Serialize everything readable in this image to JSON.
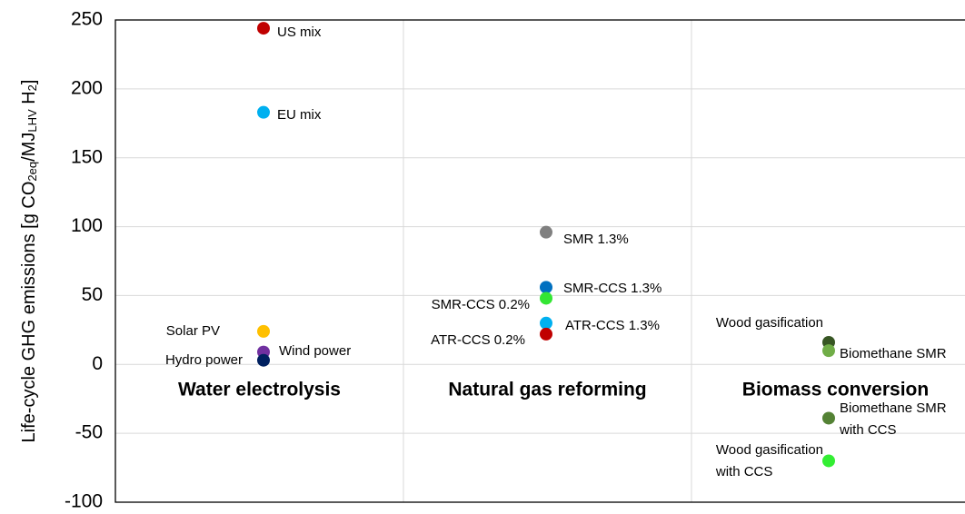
{
  "chart_data": {
    "type": "scatter",
    "ylabel": [
      {
        "text": "Life-cycle GHG emissions [g CO"
      },
      {
        "text": "2eq",
        "sub": true
      },
      {
        "text": "/MJ"
      },
      {
        "text": "LHV",
        "sub": true
      },
      {
        "text": " H"
      },
      {
        "text": "2",
        "sub": true
      },
      {
        "text": "]"
      }
    ],
    "ylim": [
      -100,
      250
    ],
    "yticks": [
      -100,
      -50,
      0,
      50,
      100,
      150,
      200,
      250
    ],
    "grid": true,
    "groups": [
      {
        "name": "Water electrolysis",
        "points": [
          {
            "label": "US mix",
            "color": "#c00000",
            "value": 244
          },
          {
            "label": "EU mix",
            "color": "#00b0f0",
            "value": 183
          },
          {
            "label": "Solar PV",
            "color": "#ffc000",
            "value": 24
          },
          {
            "label": "Wind power",
            "color": "#7030a0",
            "value": 9
          },
          {
            "label": "Hydro power",
            "color": "#002060",
            "value": 3
          }
        ]
      },
      {
        "name": "Natural gas reforming",
        "points": [
          {
            "label": "SMR 1.3%",
            "color": "#808080",
            "value": 96
          },
          {
            "label": "SMR-CCS 1.3%",
            "color": "#0070c0",
            "value": 56
          },
          {
            "label": "SMR-CCS 0.2%",
            "color": "#33e633",
            "value": 48
          },
          {
            "label": "ATR-CCS 1.3%",
            "color": "#00b0f0",
            "value": 30
          },
          {
            "label": "ATR-CCS 0.2%",
            "color": "#c00000",
            "value": 22
          }
        ]
      },
      {
        "name": "Biomass conversion",
        "points": [
          {
            "label": "Wood gasification",
            "color": "#375623",
            "value": 16
          },
          {
            "label": "Biomethane SMR",
            "color": "#70ad47",
            "value": 10
          },
          {
            "label": "Biomethane SMR\nwith CCS",
            "color": "#548235",
            "value": -39
          },
          {
            "label": "Wood gasification\nwith CCS",
            "color": "#33ee33",
            "value": -70
          }
        ]
      }
    ]
  }
}
